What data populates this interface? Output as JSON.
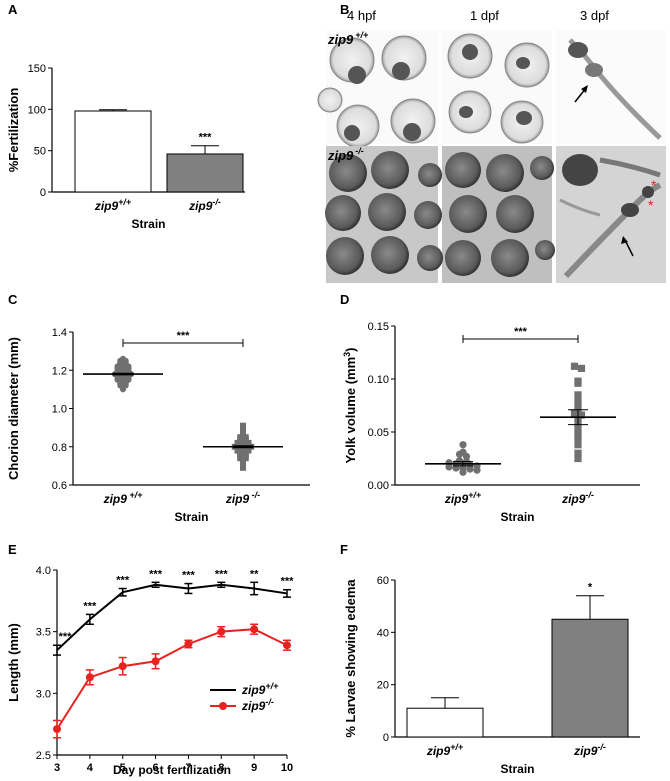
{
  "panels": {
    "A": {
      "letter": "A"
    },
    "B": {
      "letter": "B",
      "columns": [
        "4 hpf",
        "1 dpf",
        "3 dpf"
      ],
      "row_labels": [
        "zip9",
        "+/+",
        "zip9",
        "-/-"
      ]
    },
    "C": {
      "letter": "C"
    },
    "D": {
      "letter": "D"
    },
    "E": {
      "letter": "E"
    },
    "F": {
      "letter": "F"
    }
  },
  "colors": {
    "wildtype_bar": "#ffffff",
    "mutant_bar": "#808080",
    "wildtype_line": "#000000",
    "mutant_line": "#e8231f",
    "dots": "#707070"
  },
  "chart_data": [
    {
      "id": "A",
      "type": "bar",
      "ylabel": "%Fertilization",
      "xlabel": "Strain",
      "ylim": [
        0,
        150
      ],
      "yticks": [
        "0",
        "50",
        "100",
        "150"
      ],
      "categories": [
        {
          "base": "zip9",
          "sup": "+/+"
        },
        {
          "base": "zip9",
          "sup": "-/-"
        }
      ],
      "values": [
        98,
        46
      ],
      "errors": [
        1.5,
        10
      ],
      "significance": [
        "",
        "***"
      ]
    },
    {
      "id": "C",
      "type": "scatter",
      "ylabel": "Chorion diameter (mm)",
      "xlabel": "Strain",
      "ylim": [
        0.6,
        1.4
      ],
      "yticks": [
        "0.6",
        "0.8",
        "1.0",
        "1.2",
        "1.4"
      ],
      "categories": [
        {
          "base": "zip9",
          "sup": " +/+"
        },
        {
          "base": "zip9",
          "sup": " -/-"
        }
      ],
      "means": [
        1.18,
        0.8
      ],
      "sem": [
        0.004,
        0.005
      ],
      "significance": "***",
      "points": [
        [
          1.26,
          1.25,
          1.25,
          1.24,
          1.24,
          1.23,
          1.23,
          1.22,
          1.22,
          1.22,
          1.21,
          1.21,
          1.21,
          1.2,
          1.2,
          1.2,
          1.19,
          1.19,
          1.19,
          1.18,
          1.18,
          1.18,
          1.18,
          1.17,
          1.17,
          1.17,
          1.16,
          1.16,
          1.16,
          1.15,
          1.15,
          1.15,
          1.14,
          1.14,
          1.13,
          1.13,
          1.12,
          1.12,
          1.11,
          1.1
        ],
        [
          0.91,
          0.89,
          0.88,
          0.87,
          0.86,
          0.85,
          0.85,
          0.84,
          0.84,
          0.83,
          0.83,
          0.82,
          0.82,
          0.82,
          0.81,
          0.81,
          0.81,
          0.8,
          0.8,
          0.8,
          0.8,
          0.79,
          0.79,
          0.79,
          0.78,
          0.78,
          0.78,
          0.77,
          0.77,
          0.76,
          0.76,
          0.75,
          0.75,
          0.74,
          0.74,
          0.73,
          0.72,
          0.71,
          0.7,
          0.69
        ]
      ]
    },
    {
      "id": "D",
      "type": "scatter",
      "ylabel": "Yolk volume (mm",
      "ylabel_sup": "3",
      "ylabel_end": ")",
      "xlabel": "Strain",
      "ylim": [
        0.0,
        0.15
      ],
      "yticks": [
        "0.00",
        "0.05",
        "0.10",
        "0.15"
      ],
      "categories": [
        {
          "base": "zip9",
          "sup": "+/+"
        },
        {
          "base": "zip9",
          "sup": "-/-"
        }
      ],
      "means": [
        0.02,
        0.064
      ],
      "sem": [
        0.002,
        0.007
      ],
      "significance": "***",
      "points": [
        [
          0.038,
          0.031,
          0.029,
          0.027,
          0.023,
          0.022,
          0.021,
          0.02,
          0.02,
          0.019,
          0.018,
          0.017,
          0.016,
          0.016,
          0.015,
          0.014,
          0.012
        ],
        [
          0.112,
          0.11,
          0.098,
          0.096,
          0.085,
          0.08,
          0.076,
          0.07,
          0.068,
          0.066,
          0.063,
          0.058,
          0.052,
          0.048,
          0.044,
          0.038,
          0.03,
          0.025
        ]
      ]
    },
    {
      "id": "E",
      "type": "line",
      "ylabel": "Length (mm)",
      "xlabel": "Day post fertilization",
      "xlim": [
        3,
        10
      ],
      "ylim": [
        2.5,
        4.0
      ],
      "x": [
        3,
        4,
        5,
        6,
        7,
        8,
        9,
        10
      ],
      "xticks": [
        "3",
        "4",
        "5",
        "6",
        "7",
        "8",
        "9",
        "10"
      ],
      "yticks": [
        "2.5",
        "3.0",
        "3.5",
        "4.0"
      ],
      "series": [
        {
          "name": "zip9",
          "name_sup": "+/+",
          "values": [
            3.35,
            3.6,
            3.82,
            3.88,
            3.85,
            3.88,
            3.85,
            3.81
          ],
          "errors": [
            0.04,
            0.04,
            0.03,
            0.02,
            0.04,
            0.02,
            0.05,
            0.03
          ]
        },
        {
          "name": "zip9",
          "name_sup": "-/-",
          "values": [
            2.71,
            3.13,
            3.22,
            3.26,
            3.4,
            3.5,
            3.52,
            3.39
          ],
          "errors": [
            0.07,
            0.06,
            0.07,
            0.06,
            0.03,
            0.04,
            0.04,
            0.04
          ]
        }
      ],
      "significance": [
        "***",
        "***",
        "***",
        "***",
        "***",
        "***",
        "**",
        "***"
      ],
      "legend": "bottom-right"
    },
    {
      "id": "F",
      "type": "bar",
      "ylabel": "% Larvae showing edema",
      "xlabel": "Strain",
      "ylim": [
        0,
        60
      ],
      "yticks": [
        "0",
        "20",
        "40",
        "60"
      ],
      "categories": [
        {
          "base": "zip9",
          "sup": "+/+"
        },
        {
          "base": "zip9",
          "sup": "-/-"
        }
      ],
      "values": [
        11,
        45
      ],
      "errors": [
        4,
        9
      ],
      "significance": [
        "",
        "*"
      ]
    }
  ]
}
